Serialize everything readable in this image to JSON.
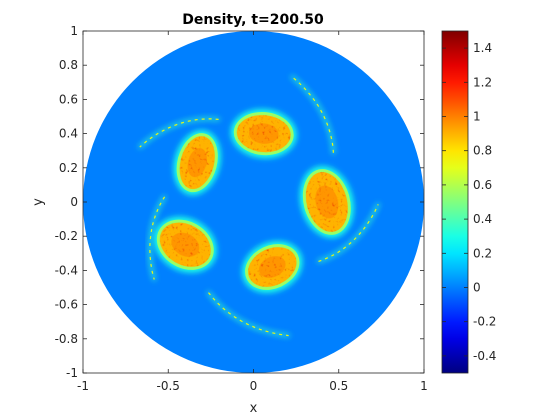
{
  "chart_data": {
    "type": "heatmap",
    "title": "Density, t=200.50",
    "xlabel": "x",
    "ylabel": "y",
    "xlim": [
      -1,
      1
    ],
    "ylim": [
      -1,
      1
    ],
    "x_ticks": [
      -1,
      -0.5,
      0,
      0.5,
      1
    ],
    "x_tick_labels": [
      "-1",
      "-0.5",
      "0",
      "0.5",
      "1"
    ],
    "y_ticks": [
      1,
      0.8,
      0.6,
      0.4,
      0.2,
      0,
      -0.2,
      -0.4,
      -0.6,
      -0.8,
      -1
    ],
    "y_tick_labels": [
      "1",
      "0.8",
      "0.6",
      "0.4",
      "0.2",
      "0",
      "-0.2",
      "-0.4",
      "-0.6",
      "-0.8",
      "-1"
    ],
    "colormap": "jet",
    "clim": [
      -0.5,
      1.5
    ],
    "colorbar_ticks": [
      1.4,
      1.2,
      1,
      0.8,
      0.6,
      0.4,
      0.2,
      0,
      -0.2,
      -0.4
    ],
    "colorbar_tick_labels": [
      "1.4",
      "1.2",
      "1",
      "0.8",
      "0.6",
      "0.4",
      "0.2",
      "0",
      "-0.2",
      "-0.4"
    ],
    "domain": {
      "shape": "disk",
      "center": [
        0,
        0
      ],
      "radius": 1,
      "background_value": 0.0
    },
    "blobs": [
      {
        "center": [
          0.06,
          0.4
        ],
        "radius_x": 0.17,
        "radius_y": 0.12,
        "angle_deg": -5,
        "peak": 0.9
      },
      {
        "center": [
          0.43,
          0.0
        ],
        "radius_x": 0.13,
        "radius_y": 0.19,
        "angle_deg": 15,
        "peak": 0.9
      },
      {
        "center": [
          0.11,
          -0.38
        ],
        "radius_x": 0.16,
        "radius_y": 0.12,
        "angle_deg": 25,
        "peak": 0.9
      },
      {
        "center": [
          -0.4,
          -0.25
        ],
        "radius_x": 0.17,
        "radius_y": 0.13,
        "angle_deg": -30,
        "peak": 0.9
      },
      {
        "center": [
          -0.33,
          0.23
        ],
        "radius_x": 0.11,
        "radius_y": 0.17,
        "angle_deg": -15,
        "peak": 0.9
      }
    ]
  }
}
